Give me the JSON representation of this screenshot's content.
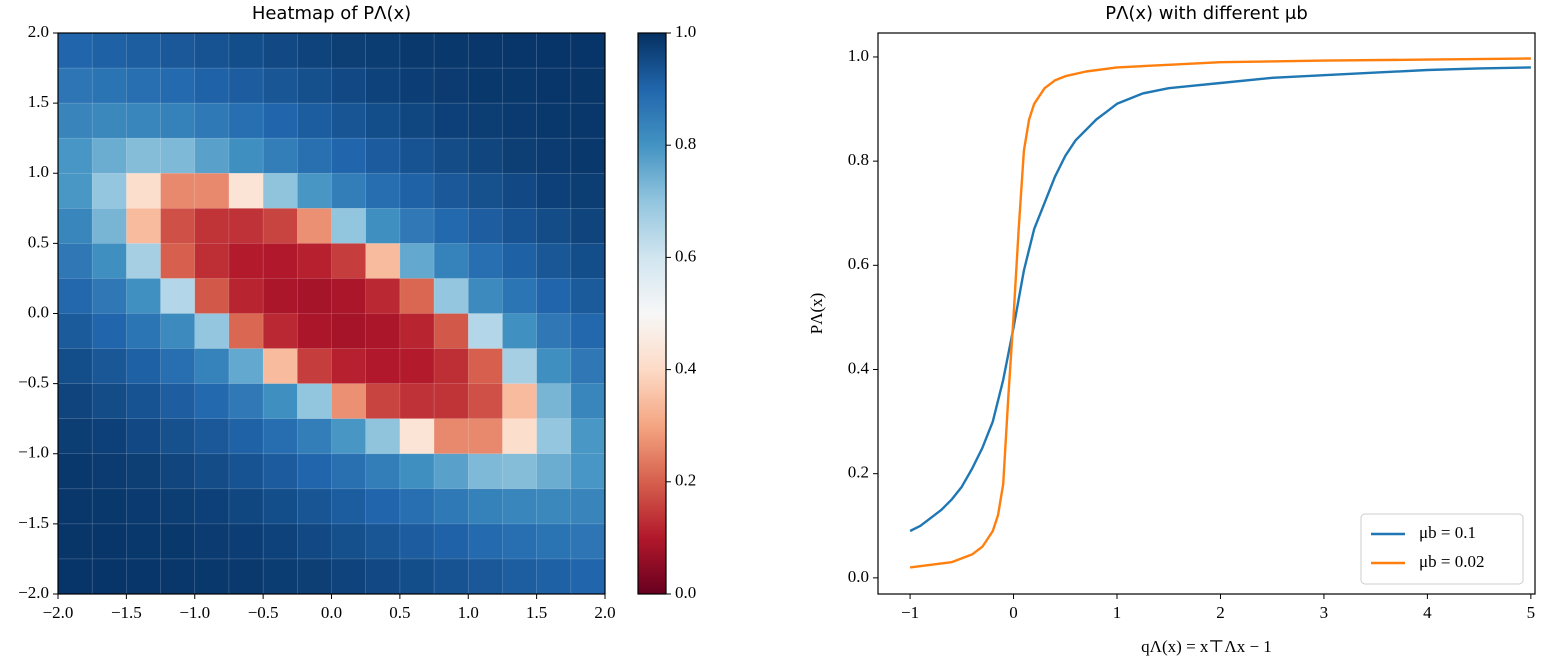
{
  "chart_data": [
    {
      "type": "heatmap",
      "title": "Heatmap of PΛ(x)",
      "x": [
        -1.875,
        -1.625,
        -1.375,
        -1.125,
        -0.875,
        -0.625,
        -0.375,
        -0.125,
        0.125,
        0.375,
        0.625,
        0.875,
        1.125,
        1.375,
        1.625,
        1.875
      ],
      "y": [
        1.875,
        1.625,
        1.375,
        1.125,
        0.875,
        0.625,
        0.375,
        0.125,
        -0.125,
        -0.375,
        -0.625,
        -0.875,
        -1.125,
        -1.375,
        -1.625,
        -1.875
      ],
      "z": [
        [
          0.9,
          0.91,
          0.915,
          0.925,
          0.935,
          0.945,
          0.955,
          0.965,
          0.973,
          0.978,
          0.984,
          0.986,
          0.987,
          0.988,
          0.99,
          0.99
        ],
        [
          0.866,
          0.87,
          0.88,
          0.892,
          0.907,
          0.918,
          0.93,
          0.943,
          0.954,
          0.967,
          0.974,
          0.98,
          0.985,
          0.986,
          0.988,
          0.989
        ],
        [
          0.833,
          0.824,
          0.83,
          0.84,
          0.858,
          0.881,
          0.9,
          0.917,
          0.931,
          0.945,
          0.957,
          0.97,
          0.976,
          0.982,
          0.986,
          0.987
        ],
        [
          0.794,
          0.75,
          0.717,
          0.725,
          0.772,
          0.81,
          0.846,
          0.877,
          0.9,
          0.919,
          0.935,
          0.949,
          0.962,
          0.973,
          0.979,
          0.985
        ],
        [
          0.792,
          0.696,
          0.41,
          0.26,
          0.26,
          0.43,
          0.703,
          0.795,
          0.846,
          0.882,
          0.908,
          0.925,
          0.941,
          0.955,
          0.97,
          0.976
        ],
        [
          0.828,
          0.733,
          0.34,
          0.178,
          0.139,
          0.136,
          0.161,
          0.27,
          0.7,
          0.808,
          0.857,
          0.893,
          0.916,
          0.935,
          0.949,
          0.963
        ],
        [
          0.86,
          0.808,
          0.668,
          0.2,
          0.13,
          0.103,
          0.098,
          0.111,
          0.152,
          0.34,
          0.759,
          0.838,
          0.88,
          0.91,
          0.928,
          0.945
        ],
        [
          0.895,
          0.86,
          0.806,
          0.647,
          0.19,
          0.116,
          0.09,
          0.082,
          0.092,
          0.123,
          0.21,
          0.696,
          0.82,
          0.867,
          0.9,
          0.923
        ],
        [
          0.923,
          0.9,
          0.867,
          0.82,
          0.696,
          0.21,
          0.123,
          0.092,
          0.082,
          0.09,
          0.116,
          0.19,
          0.647,
          0.806,
          0.86,
          0.895
        ],
        [
          0.945,
          0.928,
          0.91,
          0.88,
          0.838,
          0.759,
          0.34,
          0.152,
          0.111,
          0.098,
          0.103,
          0.13,
          0.2,
          0.668,
          0.808,
          0.86
        ],
        [
          0.963,
          0.949,
          0.935,
          0.916,
          0.893,
          0.857,
          0.808,
          0.7,
          0.27,
          0.161,
          0.136,
          0.139,
          0.178,
          0.34,
          0.733,
          0.828
        ],
        [
          0.976,
          0.97,
          0.955,
          0.941,
          0.925,
          0.908,
          0.882,
          0.846,
          0.795,
          0.703,
          0.43,
          0.26,
          0.26,
          0.41,
          0.696,
          0.792
        ],
        [
          0.985,
          0.979,
          0.973,
          0.962,
          0.949,
          0.935,
          0.919,
          0.9,
          0.877,
          0.846,
          0.81,
          0.772,
          0.725,
          0.717,
          0.75,
          0.794
        ],
        [
          0.987,
          0.986,
          0.982,
          0.976,
          0.97,
          0.957,
          0.945,
          0.931,
          0.917,
          0.9,
          0.881,
          0.858,
          0.84,
          0.83,
          0.824,
          0.833
        ],
        [
          0.989,
          0.988,
          0.986,
          0.985,
          0.98,
          0.974,
          0.967,
          0.954,
          0.943,
          0.93,
          0.918,
          0.907,
          0.892,
          0.88,
          0.87,
          0.866
        ],
        [
          0.99,
          0.99,
          0.988,
          0.987,
          0.986,
          0.984,
          0.978,
          0.973,
          0.965,
          0.955,
          0.945,
          0.935,
          0.925,
          0.915,
          0.91,
          0.9
        ]
      ],
      "xlim": [
        -2,
        2
      ],
      "ylim": [
        -2,
        2
      ],
      "xticks": [
        {
          "value": -2,
          "label": "−2.0"
        },
        {
          "value": -1.5,
          "label": "−1.5"
        },
        {
          "value": -1,
          "label": "−1.0"
        },
        {
          "value": -0.5,
          "label": "−0.5"
        },
        {
          "value": 0,
          "label": "0.0"
        },
        {
          "value": 0.5,
          "label": "0.5"
        },
        {
          "value": 1,
          "label": "1.0"
        },
        {
          "value": 1.5,
          "label": "1.5"
        },
        {
          "value": 2,
          "label": "2.0"
        }
      ],
      "yticks": [
        {
          "value": -2,
          "label": "−2.0"
        },
        {
          "value": -1.5,
          "label": "−1.5"
        },
        {
          "value": -1,
          "label": "−1.0"
        },
        {
          "value": -0.5,
          "label": "−0.5"
        },
        {
          "value": 0,
          "label": "0.0"
        },
        {
          "value": 0.5,
          "label": "0.5"
        },
        {
          "value": 1,
          "label": "1.0"
        },
        {
          "value": 1.5,
          "label": "1.5"
        },
        {
          "value": 2,
          "label": "2.0"
        }
      ],
      "colormap": "RdBu",
      "clim": [
        0,
        1
      ],
      "cticks": [
        {
          "value": 0,
          "label": "0.0"
        },
        {
          "value": 0.2,
          "label": "0.2"
        },
        {
          "value": 0.4,
          "label": "0.4"
        },
        {
          "value": 0.6,
          "label": "0.6"
        },
        {
          "value": 0.8,
          "label": "0.8"
        },
        {
          "value": 1,
          "label": "1.0"
        }
      ]
    },
    {
      "type": "line",
      "title": "PΛ(x) with different μb",
      "xlabel": "qΛ(x) = x⊤Λx − 1",
      "ylabel": "PΛ(x)",
      "series": [
        {
          "name": "μb = 0.1",
          "color": "#1f77b4",
          "x": [
            -1,
            -0.9,
            -0.8,
            -0.7,
            -0.6,
            -0.5,
            -0.4,
            -0.3,
            -0.2,
            -0.1,
            0,
            0.1,
            0.2,
            0.3,
            0.4,
            0.5,
            0.6,
            0.7,
            0.8,
            0.9,
            1,
            1.25,
            1.5,
            1.75,
            2,
            2.5,
            3,
            3.5,
            4,
            4.5,
            5
          ],
          "values": [
            0.09,
            0.1,
            0.115,
            0.13,
            0.15,
            0.175,
            0.21,
            0.25,
            0.3,
            0.38,
            0.48,
            0.59,
            0.67,
            0.72,
            0.77,
            0.81,
            0.84,
            0.86,
            0.88,
            0.895,
            0.91,
            0.93,
            0.94,
            0.945,
            0.95,
            0.96,
            0.965,
            0.97,
            0.975,
            0.978,
            0.98
          ]
        },
        {
          "name": "μb = 0.02",
          "color": "#ff7f0e",
          "x": [
            -1,
            -0.8,
            -0.6,
            -0.4,
            -0.3,
            -0.2,
            -0.15,
            -0.1,
            -0.05,
            0,
            0.05,
            0.1,
            0.15,
            0.2,
            0.3,
            0.4,
            0.5,
            0.7,
            1,
            1.5,
            2,
            3,
            4,
            5
          ],
          "values": [
            0.02,
            0.025,
            0.03,
            0.045,
            0.06,
            0.09,
            0.12,
            0.18,
            0.35,
            0.5,
            0.67,
            0.82,
            0.88,
            0.91,
            0.94,
            0.955,
            0.963,
            0.972,
            0.98,
            0.985,
            0.99,
            0.993,
            0.995,
            0.997
          ]
        }
      ],
      "xlim": [
        -1.31,
        5.04
      ],
      "ylim": [
        -0.031,
        1.046
      ],
      "xticks": [
        {
          "value": -1,
          "label": "−1"
        },
        0,
        1,
        2,
        3,
        4,
        5
      ],
      "yticks": [
        {
          "value": 0,
          "label": "0.0"
        },
        {
          "value": 0.2,
          "label": "0.2"
        },
        {
          "value": 0.4,
          "label": "0.4"
        },
        {
          "value": 0.6,
          "label": "0.6"
        },
        {
          "value": 0.8,
          "label": "0.8"
        },
        {
          "value": 1,
          "label": "1.0"
        }
      ],
      "legend": "lower right"
    }
  ]
}
